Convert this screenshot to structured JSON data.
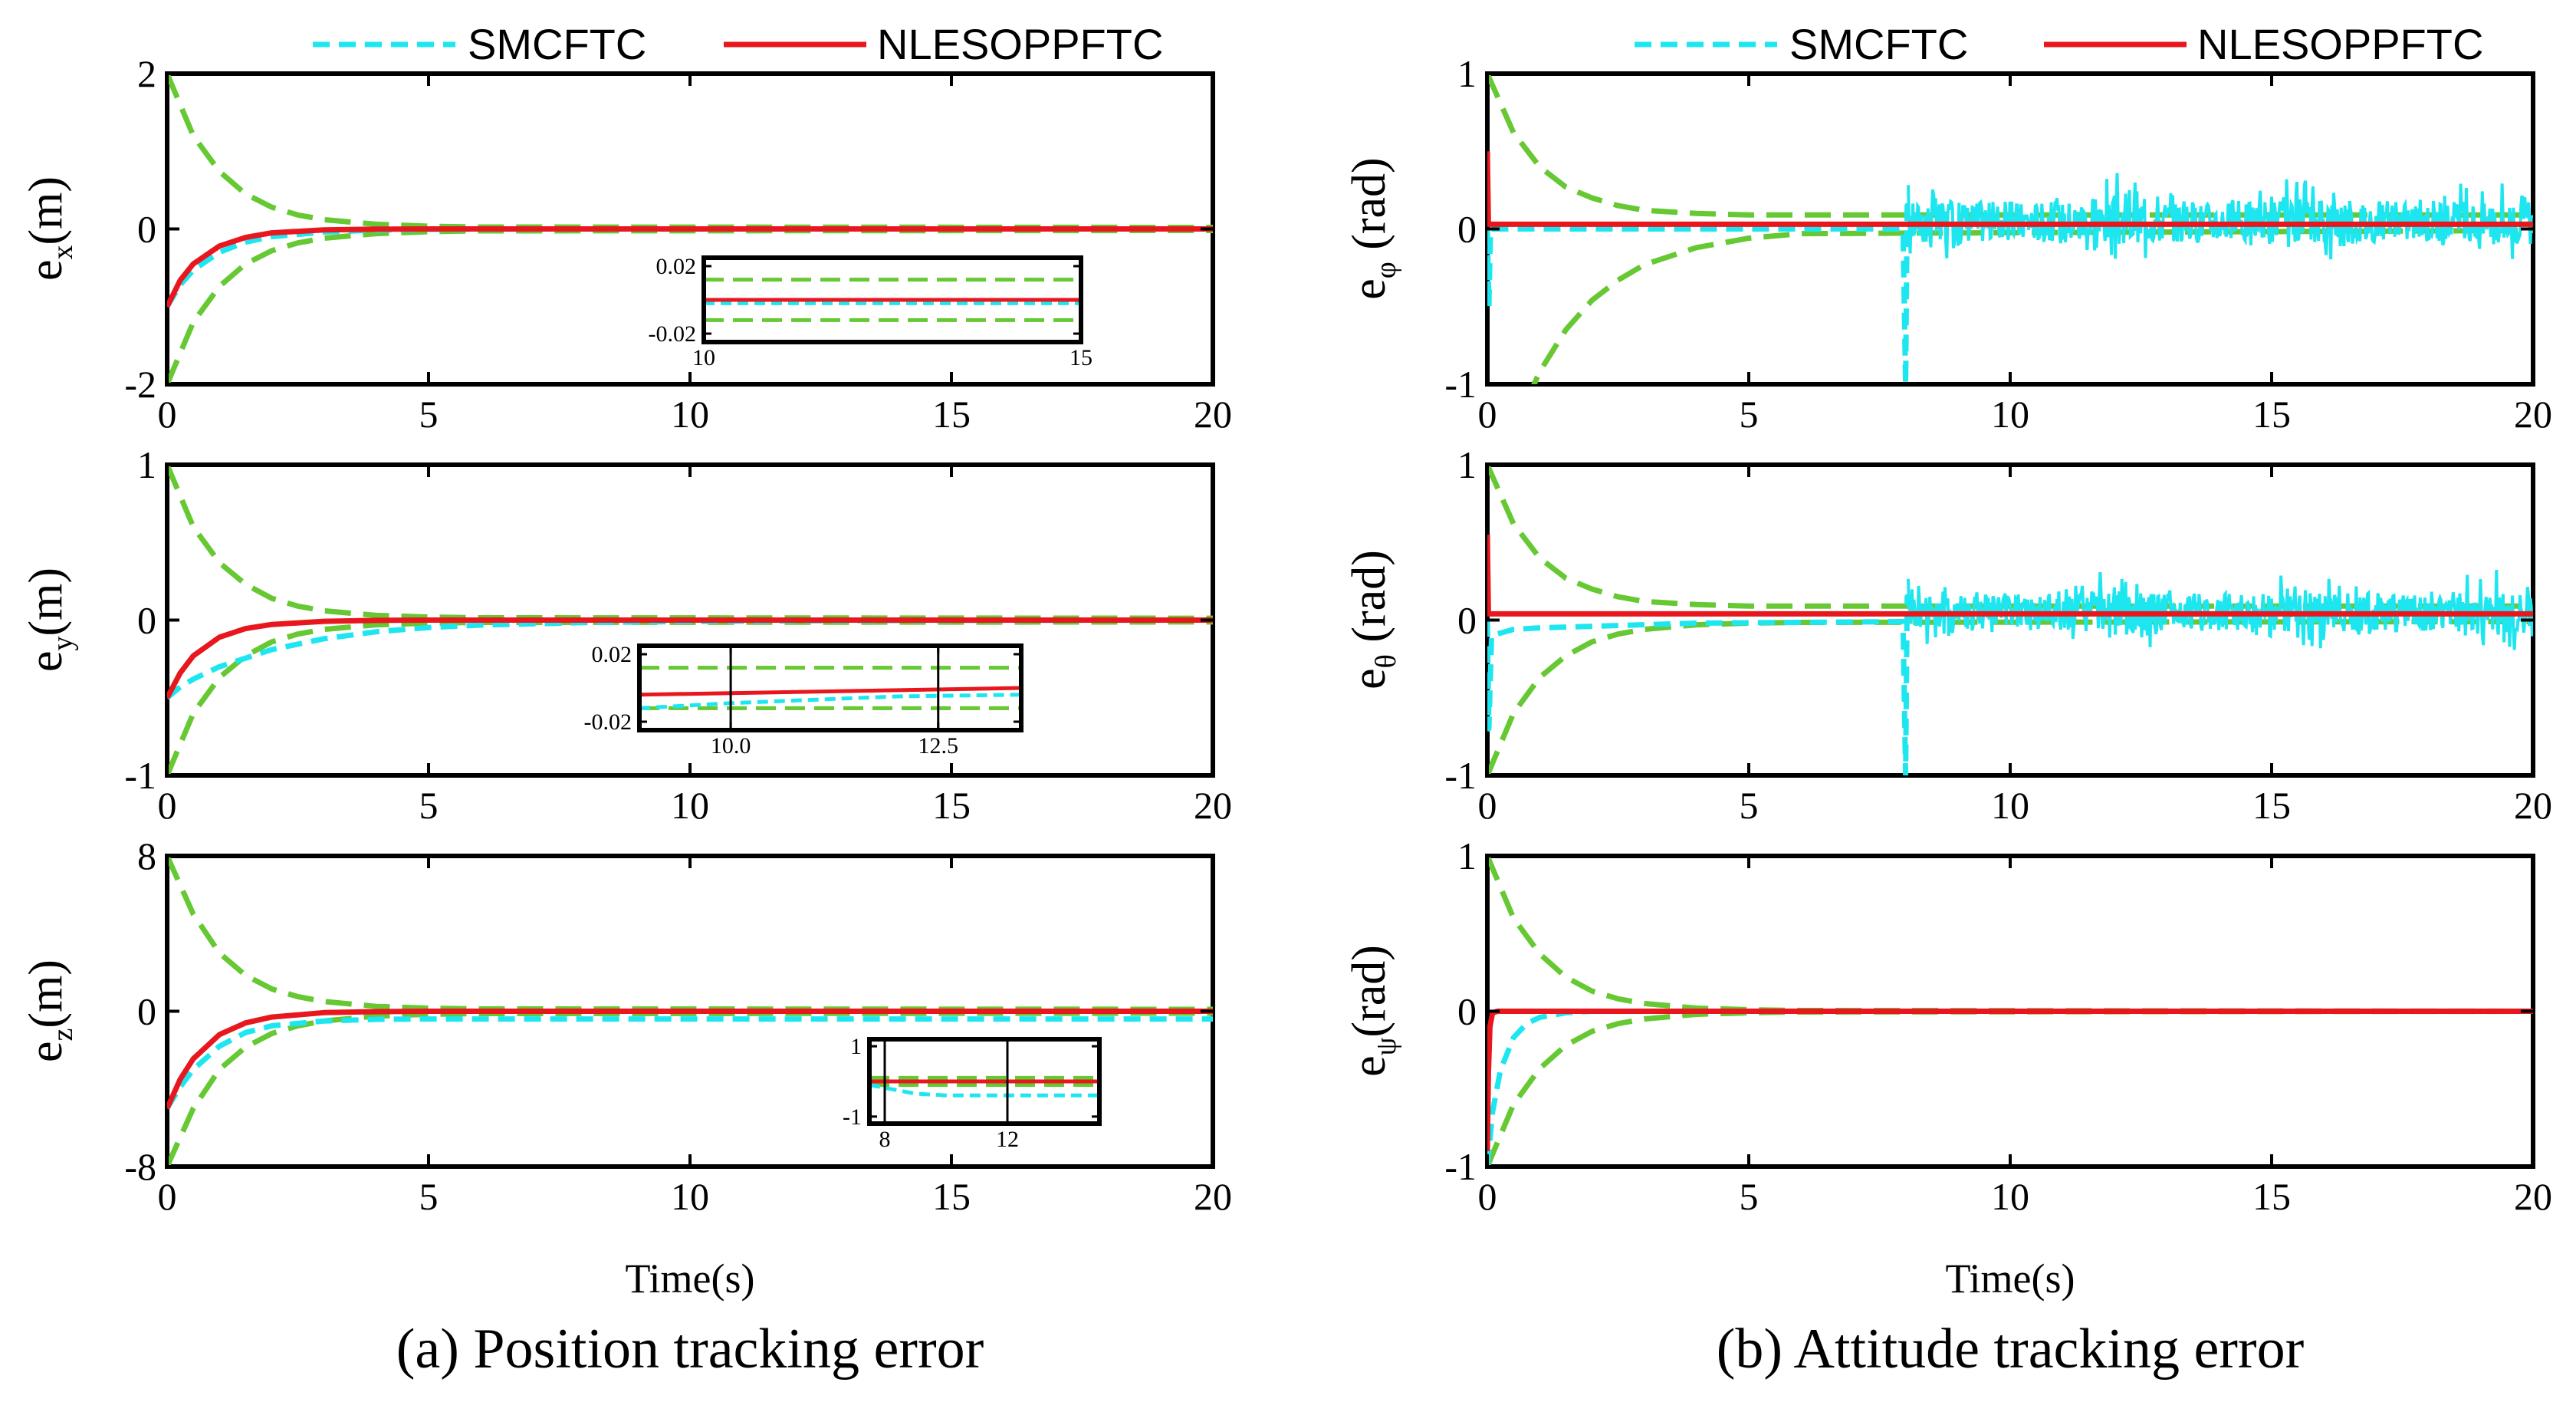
{
  "chart_data": [
    {
      "id": "ex",
      "type": "line",
      "panel": "a",
      "ylabel_main": "e",
      "ylabel_sub": "x",
      "ylabel_unit": "(m)",
      "xlim": [
        0,
        20
      ],
      "ylim": [
        -2,
        2
      ],
      "xticks": [
        "0",
        "5",
        "10",
        "15",
        "20"
      ],
      "yticks": [
        "2",
        "0",
        "-2"
      ],
      "xticks_values": [
        0,
        5,
        10,
        15,
        20
      ],
      "yticks_values": [
        2,
        0,
        -2
      ],
      "series": [
        {
          "name": "SMCFTC",
          "x": [
            0,
            0.25,
            0.5,
            1,
            1.5,
            2,
            3,
            4,
            5,
            6,
            8,
            20
          ],
          "y": [
            -1,
            -0.72,
            -0.53,
            -0.3,
            -0.17,
            -0.1,
            -0.04,
            -0.015,
            -0.006,
            -0.003,
            -0.001,
            0
          ]
        },
        {
          "name": "NLESOPPFTC",
          "x": [
            0,
            0.25,
            0.5,
            1,
            1.5,
            2,
            3,
            4,
            5,
            6,
            20
          ],
          "y": [
            -1,
            -0.66,
            -0.45,
            -0.22,
            -0.11,
            -0.05,
            -0.012,
            -0.003,
            0,
            0,
            0
          ]
        },
        {
          "name": "",
          "x": [
            0,
            0.5,
            1,
            1.5,
            2,
            2.5,
            3,
            4,
            5,
            6,
            20
          ],
          "y": [
            2,
            1.2,
            0.74,
            0.45,
            0.28,
            0.18,
            0.12,
            0.06,
            0.035,
            0.025,
            0.02
          ]
        },
        {
          "name": "",
          "x": [
            0,
            0.5,
            1,
            1.5,
            2,
            2.5,
            3,
            4,
            5,
            6,
            20
          ],
          "y": [
            -2,
            -1.2,
            -0.74,
            -0.45,
            -0.28,
            -0.18,
            -0.12,
            -0.06,
            -0.035,
            -0.025,
            -0.02
          ]
        }
      ],
      "inset": {
        "xlim": [
          10,
          15
        ],
        "ylim": [
          -0.025,
          0.025
        ],
        "xticks": [
          "10",
          "15"
        ],
        "yticks": [
          "0.02",
          "-0.02"
        ],
        "xticks_values": [
          10,
          15
        ],
        "yticks_values": [
          0.02,
          -0.02
        ],
        "series": [
          {
            "name": "",
            "x": [
              10,
              15
            ],
            "y": [
              0.012,
              0.012
            ]
          },
          {
            "name": "",
            "x": [
              10,
              15
            ],
            "y": [
              -0.012,
              -0.012
            ]
          },
          {
            "name": "SMCFTC",
            "x": [
              10,
              15
            ],
            "y": [
              -0.002,
              -0.002
            ]
          },
          {
            "name": "NLESOPPFTC",
            "x": [
              10,
              15
            ],
            "y": [
              0,
              0
            ]
          }
        ]
      }
    },
    {
      "id": "ey",
      "type": "line",
      "panel": "a",
      "ylabel_main": "e",
      "ylabel_sub": "y",
      "ylabel_unit": "(m)",
      "xlim": [
        0,
        20
      ],
      "ylim": [
        -1,
        1
      ],
      "xticks": [
        "0",
        "5",
        "10",
        "15",
        "20"
      ],
      "yticks": [
        "1",
        "0",
        "-1"
      ],
      "xticks_values": [
        0,
        5,
        10,
        15,
        20
      ],
      "yticks_values": [
        1,
        0,
        -1
      ],
      "series": [
        {
          "name": "SMCFTC",
          "x": [
            0,
            0.25,
            0.5,
            1,
            2,
            3,
            4,
            5,
            6,
            8,
            10,
            12,
            15,
            20
          ],
          "y": [
            -0.5,
            -0.43,
            -0.38,
            -0.3,
            -0.19,
            -0.12,
            -0.075,
            -0.048,
            -0.032,
            -0.016,
            -0.009,
            -0.005,
            -0.002,
            0
          ]
        },
        {
          "name": "NLESOPPFTC",
          "x": [
            0,
            0.25,
            0.5,
            1,
            1.5,
            2,
            3,
            4,
            5,
            6,
            20
          ],
          "y": [
            -0.5,
            -0.34,
            -0.23,
            -0.11,
            -0.055,
            -0.028,
            -0.008,
            -0.002,
            0,
            0,
            0
          ]
        },
        {
          "name": "",
          "x": [
            0,
            0.5,
            1,
            1.5,
            2,
            2.5,
            3,
            4,
            5,
            6,
            20
          ],
          "y": [
            1,
            0.6,
            0.37,
            0.23,
            0.14,
            0.09,
            0.06,
            0.03,
            0.02,
            0.015,
            0.012
          ]
        },
        {
          "name": "",
          "x": [
            0,
            0.5,
            1,
            1.5,
            2,
            2.5,
            3,
            4,
            5,
            6,
            20
          ],
          "y": [
            -1,
            -0.6,
            -0.37,
            -0.23,
            -0.14,
            -0.09,
            -0.06,
            -0.03,
            -0.02,
            -0.015,
            -0.012
          ]
        }
      ],
      "inset": {
        "xlim": [
          8.9,
          13.5
        ],
        "ylim": [
          -0.025,
          0.025
        ],
        "xticks": [
          "10.0",
          "12.5"
        ],
        "yticks": [
          "0.02",
          "-0.02"
        ],
        "xticks_values": [
          10,
          12.5
        ],
        "yticks_values": [
          0.02,
          -0.02
        ],
        "series": [
          {
            "name": "",
            "x": [
              8.9,
              13.5
            ],
            "y": [
              0.012,
              0.012
            ]
          },
          {
            "name": "",
            "x": [
              8.9,
              13.5
            ],
            "y": [
              -0.012,
              -0.012
            ]
          },
          {
            "name": "SMCFTC",
            "x": [
              8.9,
              10,
              11,
              12,
              13.5
            ],
            "y": [
              -0.012,
              -0.009,
              -0.007,
              -0.005,
              -0.004
            ]
          },
          {
            "name": "NLESOPPFTC",
            "x": [
              8.9,
              13.5
            ],
            "y": [
              -0.004,
              0
            ]
          }
        ]
      }
    },
    {
      "id": "ez",
      "type": "line",
      "panel": "a",
      "ylabel_main": "e",
      "ylabel_sub": "z",
      "ylabel_unit": "(m)",
      "xlim": [
        0,
        20
      ],
      "ylim": [
        -8,
        8
      ],
      "xticks": [
        "0",
        "5",
        "10",
        "15",
        "20"
      ],
      "yticks": [
        "8",
        "0",
        "-8"
      ],
      "xticks_values": [
        0,
        5,
        10,
        15,
        20
      ],
      "yticks_values": [
        8,
        0,
        -8
      ],
      "series": [
        {
          "name": "SMCFTC",
          "x": [
            0,
            0.25,
            0.5,
            1,
            1.5,
            2,
            3,
            4,
            5,
            8,
            12,
            20
          ],
          "y": [
            -5,
            -3.9,
            -3.0,
            -1.8,
            -1.1,
            -0.75,
            -0.5,
            -0.42,
            -0.4,
            -0.4,
            -0.4,
            -0.4
          ]
        },
        {
          "name": "NLESOPPFTC",
          "x": [
            0,
            0.25,
            0.5,
            1,
            1.5,
            2,
            3,
            4,
            5,
            20
          ],
          "y": [
            -5,
            -3.5,
            -2.45,
            -1.2,
            -0.6,
            -0.3,
            -0.07,
            -0.02,
            0,
            0
          ]
        },
        {
          "name": "",
          "x": [
            0,
            0.5,
            1,
            1.5,
            2,
            2.5,
            3,
            4,
            5,
            6,
            20
          ],
          "y": [
            8,
            5.0,
            3.0,
            1.85,
            1.15,
            0.75,
            0.5,
            0.25,
            0.16,
            0.12,
            0.1
          ]
        },
        {
          "name": "",
          "x": [
            0,
            0.5,
            1,
            1.5,
            2,
            2.5,
            3,
            4,
            5,
            6,
            20
          ],
          "y": [
            -8,
            -5.0,
            -3.0,
            -1.85,
            -1.15,
            -0.75,
            -0.5,
            -0.25,
            -0.16,
            -0.12,
            -0.1
          ]
        }
      ],
      "inset": {
        "xlim": [
          7.5,
          15
        ],
        "ylim": [
          -1.2,
          1.2
        ],
        "xticks": [
          "8",
          "12"
        ],
        "yticks": [
          "1",
          "-1"
        ],
        "xticks_values": [
          8,
          12
        ],
        "yticks_values": [
          1,
          -1
        ],
        "series": [
          {
            "name": "",
            "x": [
              7.5,
              15
            ],
            "y": [
              0.1,
              0.1
            ]
          },
          {
            "name": "",
            "x": [
              7.5,
              15
            ],
            "y": [
              -0.1,
              -0.1
            ]
          },
          {
            "name": "SMCFTC",
            "x": [
              7.5,
              9,
              10,
              15
            ],
            "y": [
              -0.1,
              -0.35,
              -0.4,
              -0.4
            ]
          },
          {
            "name": "NLESOPPFTC",
            "x": [
              7.5,
              15
            ],
            "y": [
              0,
              0
            ]
          }
        ]
      }
    },
    {
      "id": "ephi",
      "type": "line",
      "panel": "b",
      "ylabel_main": "e",
      "ylabel_sub": "φ",
      "ylabel_unit": " (rad)",
      "xlim": [
        0,
        20
      ],
      "ylim": [
        -1,
        1
      ],
      "xticks": [
        "0",
        "5",
        "10",
        "15",
        "20"
      ],
      "yticks": [
        "1",
        "0",
        "-1"
      ],
      "xticks_values": [
        0,
        5,
        10,
        15,
        20
      ],
      "yticks_values": [
        1,
        0,
        -1
      ],
      "noise_from": 8,
      "noise_amplitude": 0.13,
      "noise_amplitude_max": 0.35,
      "series": [
        {
          "name": "SMCFTC",
          "x": [
            0,
            0.03,
            0.06,
            0.1,
            0.2,
            1,
            7.95,
            8.0,
            8.03,
            8.1
          ],
          "y": [
            0,
            -0.5,
            0,
            0,
            0,
            0,
            0,
            -1,
            0.15,
            0.05
          ]
        },
        {
          "name": "NLESOPPFTC",
          "x": [
            0,
            0.02,
            0.05,
            20
          ],
          "y": [
            0.5,
            0.03,
            0.03,
            0.03
          ]
        },
        {
          "name": "",
          "x": [
            0,
            0.5,
            1,
            1.5,
            2,
            2.5,
            3,
            4,
            5,
            6,
            20
          ],
          "y": [
            1,
            0.62,
            0.4,
            0.27,
            0.2,
            0.15,
            0.12,
            0.1,
            0.09,
            0.09,
            0.09
          ]
        },
        {
          "name": "",
          "x": [
            0,
            0.5,
            1,
            1.5,
            2,
            2.5,
            3,
            4,
            5,
            6,
            20
          ],
          "y": [
            -1.8,
            -1.3,
            -0.92,
            -0.65,
            -0.46,
            -0.33,
            -0.23,
            -0.12,
            -0.06,
            -0.03,
            -0.01
          ]
        }
      ]
    },
    {
      "id": "etheta",
      "type": "line",
      "panel": "b",
      "ylabel_main": "e",
      "ylabel_sub": "θ",
      "ylabel_unit": " (rad)",
      "xlim": [
        0,
        20
      ],
      "ylim": [
        -1,
        1
      ],
      "xticks": [
        "0",
        "5",
        "10",
        "15",
        "20"
      ],
      "yticks": [
        "1",
        "0",
        "-1"
      ],
      "xticks_values": [
        0,
        5,
        10,
        15,
        20
      ],
      "yticks_values": [
        1,
        0,
        -1
      ],
      "noise_from": 8,
      "noise_amplitude": 0.12,
      "noise_amplitude_max": 0.3,
      "series": [
        {
          "name": "SMCFTC",
          "x": [
            0,
            0.03,
            0.08,
            0.5,
            1,
            2,
            4,
            7.95,
            8.0,
            8.03,
            8.1
          ],
          "y": [
            0,
            -0.7,
            -0.1,
            -0.06,
            -0.05,
            -0.04,
            -0.02,
            -0.01,
            -1,
            0.15,
            0.05
          ]
        },
        {
          "name": "NLESOPPFTC",
          "x": [
            0,
            0.02,
            0.05,
            20
          ],
          "y": [
            0.55,
            0.04,
            0.04,
            0.04
          ]
        },
        {
          "name": "",
          "x": [
            0,
            0.5,
            1,
            1.5,
            2,
            2.5,
            3,
            4,
            5,
            6,
            20
          ],
          "y": [
            1,
            0.62,
            0.4,
            0.27,
            0.2,
            0.15,
            0.12,
            0.1,
            0.09,
            0.09,
            0.09
          ]
        },
        {
          "name": "",
          "x": [
            0,
            0.5,
            1,
            1.5,
            2,
            2.5,
            3,
            4,
            5,
            6,
            20
          ],
          "y": [
            -1,
            -0.6,
            -0.37,
            -0.23,
            -0.14,
            -0.09,
            -0.06,
            -0.03,
            -0.02,
            -0.015,
            -0.01
          ]
        }
      ]
    },
    {
      "id": "epsi",
      "type": "line",
      "panel": "b",
      "ylabel_main": "e",
      "ylabel_sub": "ψ",
      "ylabel_unit": "(rad)",
      "xlim": [
        0,
        20
      ],
      "ylim": [
        -1,
        1
      ],
      "xticks": [
        "0",
        "5",
        "10",
        "15",
        "20"
      ],
      "yticks": [
        "1",
        "0",
        "-1"
      ],
      "xticks_values": [
        0,
        5,
        10,
        15,
        20
      ],
      "yticks_values": [
        1,
        0,
        -1
      ],
      "series": [
        {
          "name": "SMCFTC",
          "x": [
            0,
            0.1,
            0.25,
            0.5,
            0.75,
            1,
            1.5,
            2,
            3,
            20
          ],
          "y": [
            -1,
            -0.65,
            -0.38,
            -0.17,
            -0.08,
            -0.04,
            -0.01,
            0,
            0,
            0
          ]
        },
        {
          "name": "NLESOPPFTC",
          "x": [
            0,
            0.02,
            0.05,
            0.1,
            0.2,
            20
          ],
          "y": [
            -0.9,
            -0.4,
            -0.1,
            -0.01,
            0,
            0
          ]
        },
        {
          "name": "",
          "x": [
            0,
            0.5,
            1,
            1.5,
            2,
            2.5,
            3,
            4,
            5,
            6,
            20
          ],
          "y": [
            1,
            0.6,
            0.37,
            0.22,
            0.13,
            0.08,
            0.05,
            0.02,
            0.01,
            0.005,
            0
          ]
        },
        {
          "name": "",
          "x": [
            0,
            0.5,
            1,
            1.5,
            2,
            2.5,
            3,
            4,
            5,
            6,
            20
          ],
          "y": [
            -1,
            -0.6,
            -0.37,
            -0.22,
            -0.13,
            -0.08,
            -0.05,
            -0.02,
            -0.01,
            -0.005,
            0
          ]
        }
      ]
    }
  ],
  "legend": {
    "smcftc_label": "SMCFTC",
    "nlesoppftc_label": "NLESOPPFTC"
  },
  "colors": {
    "smcftc": "#1ee6f0",
    "nlesoppftc": "#e8171e",
    "bound": "#66c832"
  },
  "xlabel": "Time(s)",
  "captions": {
    "a": "(a) Position tracking error",
    "b": "(b) Attitude tracking error"
  }
}
